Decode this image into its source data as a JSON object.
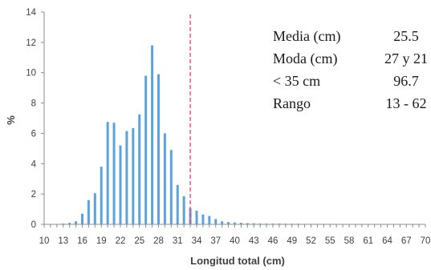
{
  "chart_data": {
    "type": "bar",
    "title": "",
    "xlabel": "Longitud total (cm)",
    "ylabel": "%",
    "ylim": [
      0,
      14
    ],
    "yticks": [
      0,
      2,
      4,
      6,
      8,
      10,
      12,
      14
    ],
    "xlim": [
      10,
      70
    ],
    "xticks": [
      10,
      13,
      16,
      19,
      22,
      25,
      28,
      31,
      34,
      37,
      40,
      43,
      46,
      49,
      52,
      55,
      58,
      61,
      64,
      67,
      70
    ],
    "grid": false,
    "bar_color": "#5ba3e0",
    "reference_line": {
      "x": 33,
      "color": "#e8406a",
      "style": "dashed"
    },
    "x": [
      13,
      14,
      15,
      16,
      17,
      18,
      19,
      20,
      21,
      22,
      23,
      24,
      25,
      26,
      27,
      28,
      29,
      30,
      31,
      32,
      33,
      34,
      35,
      36,
      37,
      38,
      39,
      40,
      41,
      42,
      43,
      44,
      45,
      46,
      47,
      48,
      49,
      50,
      51,
      52,
      53,
      54,
      55,
      56,
      57,
      58,
      59,
      60,
      61,
      62
    ],
    "values": [
      0.05,
      0.1,
      0.2,
      0.7,
      1.6,
      2.05,
      3.8,
      6.75,
      6.7,
      5.2,
      6.15,
      6.35,
      7.25,
      9.8,
      11.8,
      9.9,
      6.0,
      4.9,
      2.6,
      1.85,
      1.05,
      0.9,
      0.65,
      0.55,
      0.35,
      0.2,
      0.15,
      0.12,
      0.1,
      0.08,
      0.07,
      0.06,
      0.05,
      0.05,
      0.05,
      0.04,
      0.04,
      0.04,
      0.03,
      0.03,
      0.03,
      0.03,
      0.03,
      0.02,
      0.02,
      0.02,
      0.02,
      0.02,
      0.02,
      0.02
    ]
  },
  "stats": [
    {
      "label": "Media (cm)",
      "value": "25.5"
    },
    {
      "label": "Moda (cm)",
      "value": "27 y 21"
    },
    {
      "label": "< 35 cm",
      "value": "96.7"
    },
    {
      "label": "Rango",
      "value": "13 - 62"
    }
  ]
}
